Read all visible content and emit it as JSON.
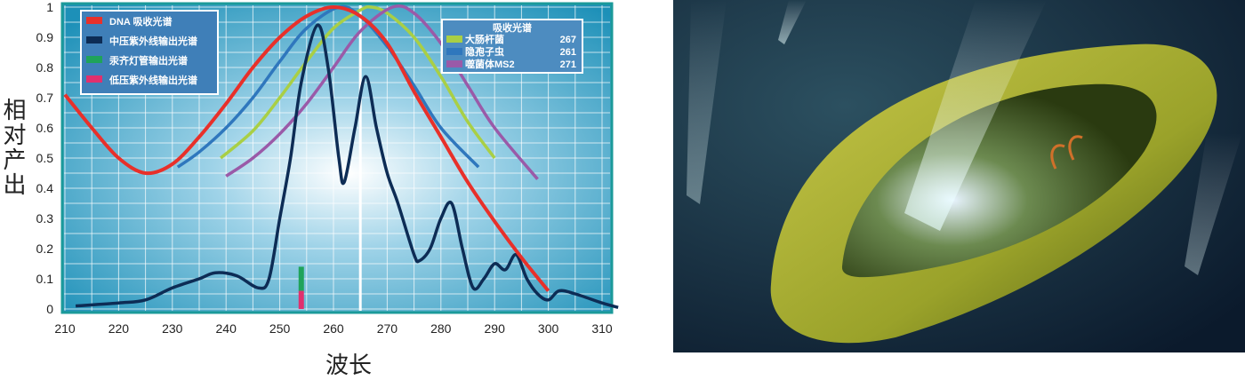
{
  "chart_data": {
    "type": "line",
    "xlabel": "波长",
    "ylabel": "相对产出",
    "xlim": [
      210,
      310
    ],
    "ylim": [
      0,
      1
    ],
    "xticks": [
      210,
      220,
      230,
      240,
      250,
      260,
      270,
      280,
      290,
      300,
      310
    ],
    "yticks": [
      0,
      0.1,
      0.2,
      0.3,
      0.4,
      0.5,
      0.6,
      0.7,
      0.8,
      0.9,
      1
    ],
    "ytick_labels": [
      "0",
      "0.1",
      "0.2",
      "0.3",
      "0.4",
      "0.5",
      "0.6",
      "0.7",
      "0.8",
      "0.9",
      "1"
    ],
    "grid": true,
    "legend_left": {
      "placement": "top-left",
      "entries": [
        {
          "name": "DNA 吸收光谱",
          "color": "#e8302a"
        },
        {
          "name": "中压紫外线输出光谱",
          "color": "#0d2c55"
        },
        {
          "name": "汞齐灯管输出光谱",
          "color": "#1fa35a"
        },
        {
          "name": "低压紫外线输出光谱",
          "color": "#e0306e"
        }
      ]
    },
    "legend_right": {
      "placement": "top-right",
      "title": "吸收光谱",
      "entries": [
        {
          "name": "大肠杆菌",
          "value": "267",
          "color": "#a9cf45"
        },
        {
          "name": "隐孢子虫",
          "value": "261",
          "color": "#2f77bd"
        },
        {
          "name": "噬菌体MS2",
          "value": "271",
          "color": "#9a5aa8"
        }
      ]
    },
    "series": [
      {
        "name": "DNA 吸收光谱",
        "color": "#e8302a",
        "x": [
          210,
          215,
          220,
          225,
          230,
          235,
          240,
          245,
          250,
          255,
          260,
          265,
          270,
          275,
          280,
          285,
          290,
          295,
          300
        ],
        "y": [
          0.71,
          0.6,
          0.5,
          0.45,
          0.48,
          0.57,
          0.68,
          0.8,
          0.9,
          0.97,
          1.0,
          0.97,
          0.88,
          0.72,
          0.57,
          0.42,
          0.29,
          0.17,
          0.06
        ]
      },
      {
        "name": "中压紫外线输出光谱",
        "color": "#0d2c55",
        "x": [
          212,
          220,
          225,
          230,
          235,
          238,
          242,
          246,
          248,
          250,
          252,
          254,
          257,
          259,
          261,
          262,
          264,
          266,
          268,
          270,
          272,
          275,
          276,
          278,
          280,
          282,
          284,
          286,
          288,
          290,
          292,
          294,
          296,
          298,
          300,
          302,
          305,
          310,
          313
        ],
        "y": [
          0.01,
          0.02,
          0.03,
          0.07,
          0.1,
          0.12,
          0.11,
          0.07,
          0.1,
          0.3,
          0.5,
          0.75,
          0.94,
          0.8,
          0.5,
          0.42,
          0.6,
          0.77,
          0.6,
          0.45,
          0.35,
          0.18,
          0.16,
          0.2,
          0.3,
          0.35,
          0.2,
          0.07,
          0.1,
          0.15,
          0.13,
          0.18,
          0.1,
          0.05,
          0.03,
          0.06,
          0.05,
          0.02,
          0.005
        ]
      },
      {
        "name": "大肠杆菌",
        "color": "#a9cf45",
        "x": [
          239,
          245,
          250,
          255,
          260,
          265,
          267,
          270,
          275,
          280,
          285,
          290
        ],
        "y": [
          0.5,
          0.59,
          0.7,
          0.82,
          0.93,
          0.99,
          1.0,
          0.98,
          0.9,
          0.77,
          0.62,
          0.5
        ]
      },
      {
        "name": "隐孢子虫",
        "color": "#2f77bd",
        "x": [
          231,
          235,
          240,
          245,
          250,
          255,
          261,
          265,
          270,
          275,
          280,
          287
        ],
        "y": [
          0.47,
          0.52,
          0.6,
          0.7,
          0.82,
          0.93,
          1.0,
          0.97,
          0.87,
          0.74,
          0.6,
          0.47
        ]
      },
      {
        "name": "噬菌体MS2",
        "color": "#9a5aa8",
        "x": [
          240,
          245,
          250,
          255,
          260,
          265,
          271,
          275,
          280,
          285,
          290,
          298
        ],
        "y": [
          0.44,
          0.5,
          0.58,
          0.68,
          0.8,
          0.92,
          1.0,
          0.98,
          0.88,
          0.74,
          0.6,
          0.43
        ]
      }
    ],
    "bars": [
      {
        "name": "汞齐灯管输出光谱",
        "x": 254,
        "y0": 0.06,
        "y1": 0.14,
        "color": "#1fa35a"
      },
      {
        "name": "低压紫外线输出光谱",
        "x": 254,
        "y0": 0,
        "y1": 0.06,
        "color": "#e0306e"
      }
    ]
  }
}
